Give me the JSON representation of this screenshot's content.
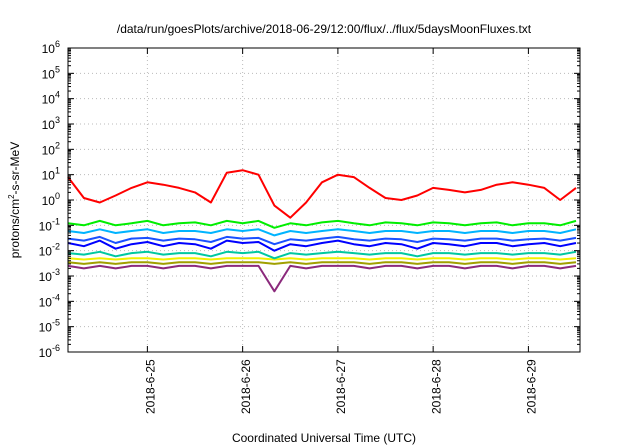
{
  "chart_data": {
    "type": "line",
    "title": "/data/run/goesPlots/archive/2018-06-29/12:00/flux/../flux/5daysMoonFluxes.txt",
    "xlabel": "Coordinated Universal Time (UTC)",
    "ylabel": {
      "base": "protons/cm",
      "sup": "2",
      "rest": "-s-sr-MeV"
    },
    "yscale": "log",
    "ylim": [
      1e-06,
      1000000.0
    ],
    "xlim": [
      "2018-06-24 04:00",
      "2018-06-29 13:00"
    ],
    "grid": true,
    "y_ticks": [
      {
        "base": "10",
        "exp": "-6"
      },
      {
        "base": "10",
        "exp": "-5"
      },
      {
        "base": "10",
        "exp": "-4"
      },
      {
        "base": "10",
        "exp": "-3"
      },
      {
        "base": "10",
        "exp": "-2"
      },
      {
        "base": "10",
        "exp": "-1"
      },
      {
        "base": "10",
        "exp": "0"
      },
      {
        "base": "10",
        "exp": "1"
      },
      {
        "base": "10",
        "exp": "2"
      },
      {
        "base": "10",
        "exp": "3"
      },
      {
        "base": "10",
        "exp": "4"
      },
      {
        "base": "10",
        "exp": "5"
      },
      {
        "base": "10",
        "exp": "6"
      }
    ],
    "x_ticks": [
      "2018-6-25",
      "2018-6-26",
      "2018-6-27",
      "2018-6-28",
      "2018-6-29"
    ],
    "series_style": [
      {
        "color": "#ff0000"
      },
      {
        "color": "#00ee00"
      },
      {
        "color": "#00b4ff"
      },
      {
        "color": "#0000ff"
      },
      {
        "color": "#1a50ff"
      },
      {
        "color": "#00c8a0"
      },
      {
        "color": "#f0f000"
      },
      {
        "color": "#a0a000"
      },
      {
        "color": "#8b2a7c"
      }
    ],
    "x": [
      "2018-06-24 04:00",
      "2018-06-24 08:00",
      "2018-06-24 12:00",
      "2018-06-24 16:00",
      "2018-06-24 20:00",
      "2018-06-25 00:00",
      "2018-06-25 04:00",
      "2018-06-25 08:00",
      "2018-06-25 12:00",
      "2018-06-25 16:00",
      "2018-06-25 20:00",
      "2018-06-26 00:00",
      "2018-06-26 04:00",
      "2018-06-26 08:00",
      "2018-06-26 12:00",
      "2018-06-26 16:00",
      "2018-06-26 20:00",
      "2018-06-27 00:00",
      "2018-06-27 04:00",
      "2018-06-27 08:00",
      "2018-06-27 12:00",
      "2018-06-27 16:00",
      "2018-06-27 20:00",
      "2018-06-28 00:00",
      "2018-06-28 04:00",
      "2018-06-28 08:00",
      "2018-06-28 12:00",
      "2018-06-28 16:00",
      "2018-06-28 20:00",
      "2018-06-29 00:00",
      "2018-06-29 04:00",
      "2018-06-29 08:00",
      "2018-06-29 12:00"
    ],
    "series": [
      {
        "values": [
          8,
          1.2,
          0.8,
          1.5,
          3,
          5,
          4,
          3,
          2,
          0.8,
          12,
          15,
          10,
          0.6,
          0.2,
          0.8,
          5,
          10,
          8,
          3,
          1.2,
          1,
          1.5,
          3,
          2.5,
          2,
          2.5,
          4,
          5,
          4,
          3,
          1,
          3
        ]
      },
      {
        "values": [
          0.12,
          0.1,
          0.15,
          0.1,
          0.12,
          0.15,
          0.1,
          0.12,
          0.13,
          0.1,
          0.15,
          0.12,
          0.15,
          0.08,
          0.12,
          0.1,
          0.13,
          0.15,
          0.12,
          0.1,
          0.13,
          0.12,
          0.1,
          0.13,
          0.12,
          0.1,
          0.12,
          0.13,
          0.1,
          0.12,
          0.12,
          0.1,
          0.15
        ]
      },
      {
        "values": [
          0.06,
          0.05,
          0.07,
          0.05,
          0.06,
          0.07,
          0.05,
          0.06,
          0.06,
          0.05,
          0.07,
          0.06,
          0.07,
          0.04,
          0.06,
          0.05,
          0.06,
          0.07,
          0.06,
          0.05,
          0.06,
          0.06,
          0.05,
          0.06,
          0.06,
          0.05,
          0.06,
          0.06,
          0.05,
          0.06,
          0.06,
          0.05,
          0.07
        ]
      },
      {
        "values": [
          0.02,
          0.015,
          0.025,
          0.012,
          0.018,
          0.022,
          0.015,
          0.02,
          0.018,
          0.012,
          0.025,
          0.02,
          0.022,
          0.01,
          0.018,
          0.015,
          0.02,
          0.025,
          0.018,
          0.015,
          0.02,
          0.018,
          0.012,
          0.02,
          0.018,
          0.015,
          0.02,
          0.02,
          0.015,
          0.018,
          0.02,
          0.015,
          0.02
        ]
      },
      {
        "values": [
          0.03,
          0.025,
          0.035,
          0.02,
          0.03,
          0.032,
          0.025,
          0.03,
          0.028,
          0.022,
          0.035,
          0.03,
          0.032,
          0.018,
          0.028,
          0.025,
          0.03,
          0.035,
          0.028,
          0.025,
          0.03,
          0.028,
          0.022,
          0.03,
          0.028,
          0.025,
          0.03,
          0.03,
          0.025,
          0.028,
          0.03,
          0.025,
          0.032
        ]
      },
      {
        "values": [
          0.008,
          0.007,
          0.009,
          0.006,
          0.008,
          0.009,
          0.007,
          0.008,
          0.008,
          0.006,
          0.009,
          0.008,
          0.009,
          0.005,
          0.008,
          0.007,
          0.008,
          0.009,
          0.008,
          0.007,
          0.008,
          0.008,
          0.006,
          0.008,
          0.008,
          0.007,
          0.008,
          0.008,
          0.007,
          0.008,
          0.008,
          0.007,
          0.009
        ]
      },
      {
        "values": [
          0.005,
          0.0045,
          0.005,
          0.0045,
          0.005,
          0.005,
          0.0045,
          0.005,
          0.005,
          0.0045,
          0.005,
          0.005,
          0.005,
          0.0045,
          0.005,
          0.0045,
          0.005,
          0.005,
          0.005,
          0.0045,
          0.005,
          0.005,
          0.0045,
          0.005,
          0.005,
          0.0045,
          0.005,
          0.005,
          0.0045,
          0.005,
          0.005,
          0.0045,
          0.005
        ]
      },
      {
        "values": [
          0.0035,
          0.003,
          0.0035,
          0.003,
          0.0035,
          0.0035,
          0.003,
          0.0035,
          0.0035,
          0.003,
          0.0035,
          0.0035,
          0.0035,
          0.003,
          0.0035,
          0.003,
          0.0035,
          0.0035,
          0.0035,
          0.003,
          0.0035,
          0.0035,
          0.003,
          0.0035,
          0.0035,
          0.003,
          0.0035,
          0.0035,
          0.003,
          0.0035,
          0.0035,
          0.003,
          0.0035
        ]
      },
      {
        "values": [
          0.0025,
          0.002,
          0.0025,
          0.002,
          0.0025,
          0.0025,
          0.002,
          0.0025,
          0.0025,
          0.002,
          0.0025,
          0.0025,
          0.0025,
          0.00025,
          0.0025,
          0.002,
          0.0025,
          0.0025,
          0.0025,
          0.002,
          0.0025,
          0.0025,
          0.002,
          0.0025,
          0.0025,
          0.002,
          0.0025,
          0.0025,
          0.002,
          0.0025,
          0.0025,
          0.002,
          0.0025
        ]
      }
    ]
  }
}
